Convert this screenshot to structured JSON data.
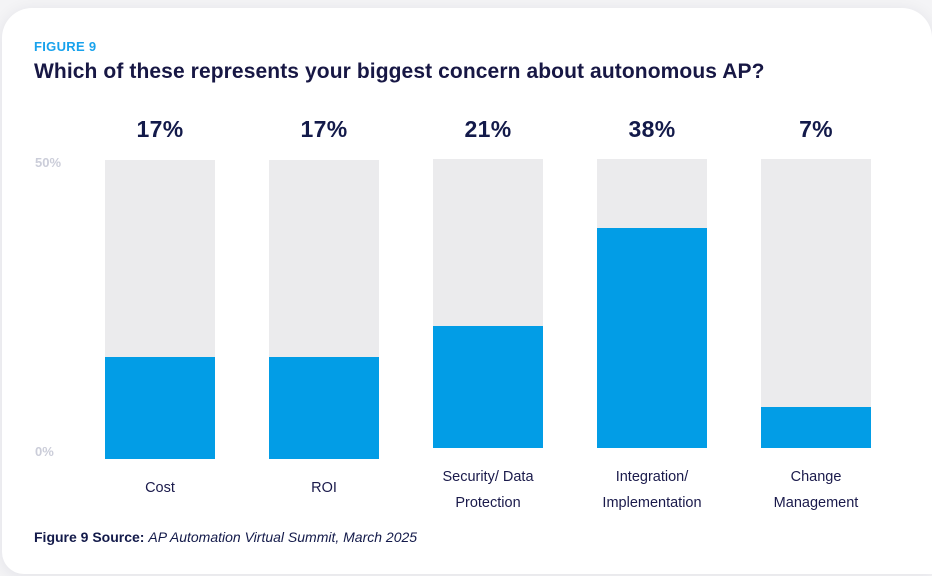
{
  "figure_label": "FIGURE 9",
  "title": "Which of these represents your biggest concern about autonomous AP?",
  "axis": {
    "top_label": "50%",
    "bottom_label": "0%"
  },
  "source": {
    "prefix": "Figure 9 Source:",
    "text": "AP Automation Virtual Summit, March 2025"
  },
  "colors": {
    "bar_blue": "#029de6",
    "track_gray": "#ebebed",
    "figure_label_blue": "#18a2ec",
    "heading_navy": "#171744",
    "axis_gray": "#cbcdd9"
  },
  "chart_data": {
    "type": "bar",
    "title": "Which of these represents your biggest concern about autonomous AP?",
    "categories": [
      "Cost",
      "ROI",
      "Security/ Data Protection",
      "Integration/ Implementation",
      "Change Management"
    ],
    "category_lines": [
      [
        "Cost"
      ],
      [
        "ROI"
      ],
      [
        "Security/ Data",
        "Protection"
      ],
      [
        "Integration/",
        "Implementation"
      ],
      [
        "Change",
        "Management"
      ]
    ],
    "values": [
      17,
      17,
      21,
      38,
      7
    ],
    "value_labels": [
      "17%",
      "17%",
      "21%",
      "38%",
      "7%"
    ],
    "xlabel": "",
    "ylabel": "",
    "ylim": [
      0,
      50
    ],
    "grid": false,
    "legend": "none"
  }
}
